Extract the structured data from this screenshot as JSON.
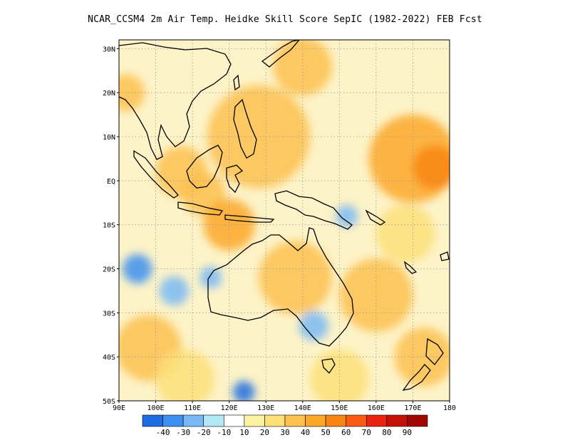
{
  "title": "NCAR_CCSM4  2m Air Temp. Heidke Skill Score SepIC (1982-2022) FEB Fcst",
  "map": {
    "lon_range": [
      90,
      180
    ],
    "lat_range": [
      -50,
      32
    ],
    "lat_ticks": [
      {
        "value": 30,
        "label": "30N"
      },
      {
        "value": 20,
        "label": "20N"
      },
      {
        "value": 10,
        "label": "10N"
      },
      {
        "value": 0,
        "label": "EQ"
      },
      {
        "value": -10,
        "label": "10S"
      },
      {
        "value": -20,
        "label": "20S"
      },
      {
        "value": -30,
        "label": "30S"
      },
      {
        "value": -40,
        "label": "40S"
      },
      {
        "value": -50,
        "label": "50S"
      }
    ],
    "lon_ticks": [
      {
        "value": 90,
        "label": "90E"
      },
      {
        "value": 100,
        "label": "100E"
      },
      {
        "value": 110,
        "label": "110E"
      },
      {
        "value": 120,
        "label": "120E"
      },
      {
        "value": 130,
        "label": "130E"
      },
      {
        "value": 140,
        "label": "140E"
      },
      {
        "value": 150,
        "label": "150E"
      },
      {
        "value": 160,
        "label": "160E"
      },
      {
        "value": 170,
        "label": "170E"
      },
      {
        "value": 180,
        "label": "180"
      }
    ],
    "grid": "dotted",
    "skill_regions": [
      {
        "lon": 128,
        "lat": 10,
        "r": 14,
        "level": 30
      },
      {
        "lon": 170,
        "lat": 5,
        "r": 12,
        "level": 40
      },
      {
        "lon": 176,
        "lat": 3,
        "r": 6,
        "level": 50
      },
      {
        "lon": 107,
        "lat": 2,
        "r": 7,
        "level": 30
      },
      {
        "lon": 113,
        "lat": -3,
        "r": 6,
        "level": 30
      },
      {
        "lon": 120,
        "lat": -10,
        "r": 7,
        "level": 40
      },
      {
        "lon": 138,
        "lat": -22,
        "r": 10,
        "level": 30
      },
      {
        "lon": 160,
        "lat": -26,
        "r": 10,
        "level": 30
      },
      {
        "lon": 168,
        "lat": -12,
        "r": 8,
        "level": 20
      },
      {
        "lon": 140,
        "lat": 26,
        "r": 8,
        "level": 30
      },
      {
        "lon": 92,
        "lat": 20,
        "r": 5,
        "level": 30
      },
      {
        "lon": 98,
        "lat": -38,
        "r": 9,
        "level": 30
      },
      {
        "lon": 173,
        "lat": -40,
        "r": 8,
        "level": 30
      },
      {
        "lon": 150,
        "lat": -45,
        "r": 8,
        "level": 20
      },
      {
        "lon": 108,
        "lat": -45,
        "r": 8,
        "level": 20
      },
      {
        "lon": 95,
        "lat": -20,
        "r": 4,
        "level": -20
      },
      {
        "lon": 105,
        "lat": -25,
        "r": 4,
        "level": -10
      },
      {
        "lon": 143,
        "lat": -33,
        "r": 4,
        "level": -10
      },
      {
        "lon": 124,
        "lat": -48,
        "r": 3,
        "level": -30
      },
      {
        "lon": 152,
        "lat": -8,
        "r": 3,
        "level": -10
      },
      {
        "lon": 115,
        "lat": -22,
        "r": 3,
        "level": -10
      }
    ],
    "colors": {
      "ocean_base": "#fdf3c8",
      "coast": "#000000",
      "grid": "#9a9a9a"
    }
  },
  "colorbar": {
    "colors": [
      "#1e6de0",
      "#3c8ff0",
      "#7ab8f5",
      "#b3e8f8",
      "#ffffff",
      "#fdf1a3",
      "#fde07a",
      "#fdc14f",
      "#fca829",
      "#f98612",
      "#fb5a14",
      "#e8230f",
      "#c51007",
      "#a00700"
    ],
    "labels": [
      "-40",
      "-30",
      "-20",
      "-10",
      "10",
      "20",
      "30",
      "40",
      "50",
      "60",
      "70",
      "80",
      "90"
    ]
  }
}
